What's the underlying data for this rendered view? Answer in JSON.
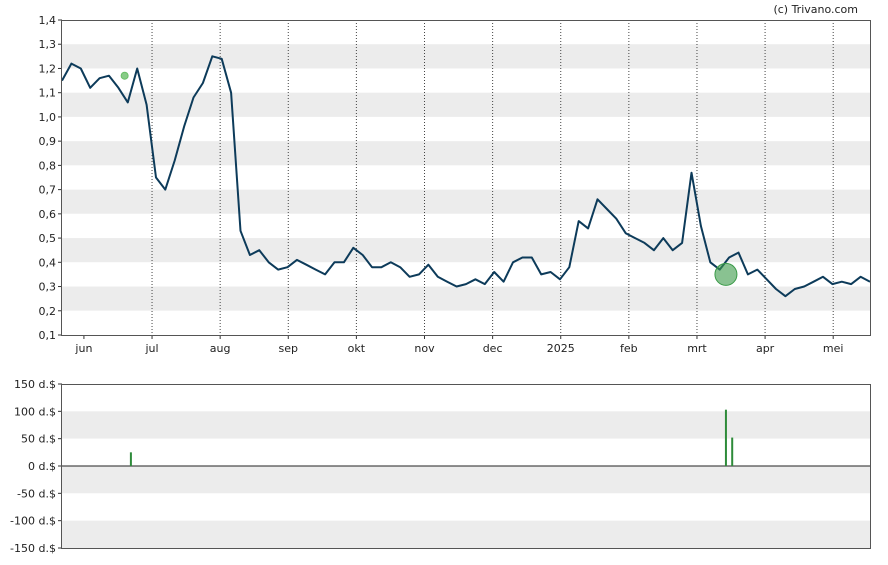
{
  "credit": "(c) Trivano.com",
  "chart_data": [
    {
      "type": "line",
      "ylim": [
        0.1,
        1.4
      ],
      "y_ticks": [
        "1,4",
        "1,3",
        "1,2",
        "1,1",
        "1,0",
        "0,9",
        "0,8",
        "0,7",
        "0,6",
        "0,5",
        "0,4",
        "0,3",
        "0,2",
        "0,1"
      ],
      "x_ticks": [
        "jun",
        "jul",
        "aug",
        "sep",
        "okt",
        "nov",
        "dec",
        "2025",
        "feb",
        "mrt",
        "apr",
        "mei"
      ],
      "grid": "alternating horizontal bands, vertical dotted month lines",
      "color": "#0d3b5a",
      "markers": [
        {
          "x": 20,
          "y": 1.17,
          "color": "#6abf69"
        },
        {
          "x": 212,
          "y": 0.35,
          "color": "#3a9a48"
        }
      ],
      "x": [
        0,
        3,
        6,
        9,
        12,
        15,
        18,
        21,
        24,
        27,
        30,
        33,
        36,
        39,
        42,
        45,
        48,
        51,
        54,
        57,
        60,
        63,
        66,
        69,
        72,
        75,
        78,
        81,
        84,
        87,
        90,
        93,
        96,
        99,
        102,
        105,
        108,
        111,
        114,
        117,
        120,
        123,
        126,
        129,
        132,
        135,
        138,
        141,
        144,
        147,
        150,
        153,
        156,
        159,
        162,
        165,
        168,
        171,
        174,
        177,
        180,
        183,
        186,
        189,
        192,
        195,
        198,
        201,
        204,
        207,
        210,
        213,
        216,
        219,
        222,
        225,
        228,
        231,
        234,
        237,
        240,
        243,
        246,
        249,
        252,
        255,
        258
      ],
      "y": [
        1.15,
        1.22,
        1.2,
        1.12,
        1.16,
        1.17,
        1.12,
        1.06,
        1.2,
        1.05,
        0.75,
        0.7,
        0.82,
        0.96,
        1.08,
        1.14,
        1.25,
        1.24,
        1.1,
        0.53,
        0.43,
        0.45,
        0.4,
        0.37,
        0.38,
        0.41,
        0.39,
        0.37,
        0.35,
        0.4,
        0.4,
        0.46,
        0.43,
        0.38,
        0.38,
        0.4,
        0.38,
        0.34,
        0.35,
        0.39,
        0.34,
        0.32,
        0.3,
        0.31,
        0.33,
        0.31,
        0.36,
        0.32,
        0.4,
        0.42,
        0.42,
        0.35,
        0.36,
        0.33,
        0.38,
        0.57,
        0.54,
        0.66,
        0.62,
        0.58,
        0.52,
        0.5,
        0.48,
        0.45,
        0.5,
        0.45,
        0.48,
        0.77,
        0.55,
        0.4,
        0.37,
        0.42,
        0.44,
        0.35,
        0.37,
        0.33,
        0.29,
        0.26,
        0.29,
        0.3,
        0.32,
        0.34,
        0.31,
        0.32,
        0.31,
        0.34,
        0.32
      ]
    },
    {
      "type": "bar",
      "ylim": [
        -150,
        150
      ],
      "y_ticks": [
        "150 d.$",
        "100 d.$",
        "50 d.$",
        "0 d.$",
        "-50 d.$",
        "-100 d.$",
        "-150 d.$"
      ],
      "color": "#2e8b3a",
      "x": [
        22,
        212,
        214
      ],
      "values": [
        25,
        103,
        52
      ]
    }
  ]
}
